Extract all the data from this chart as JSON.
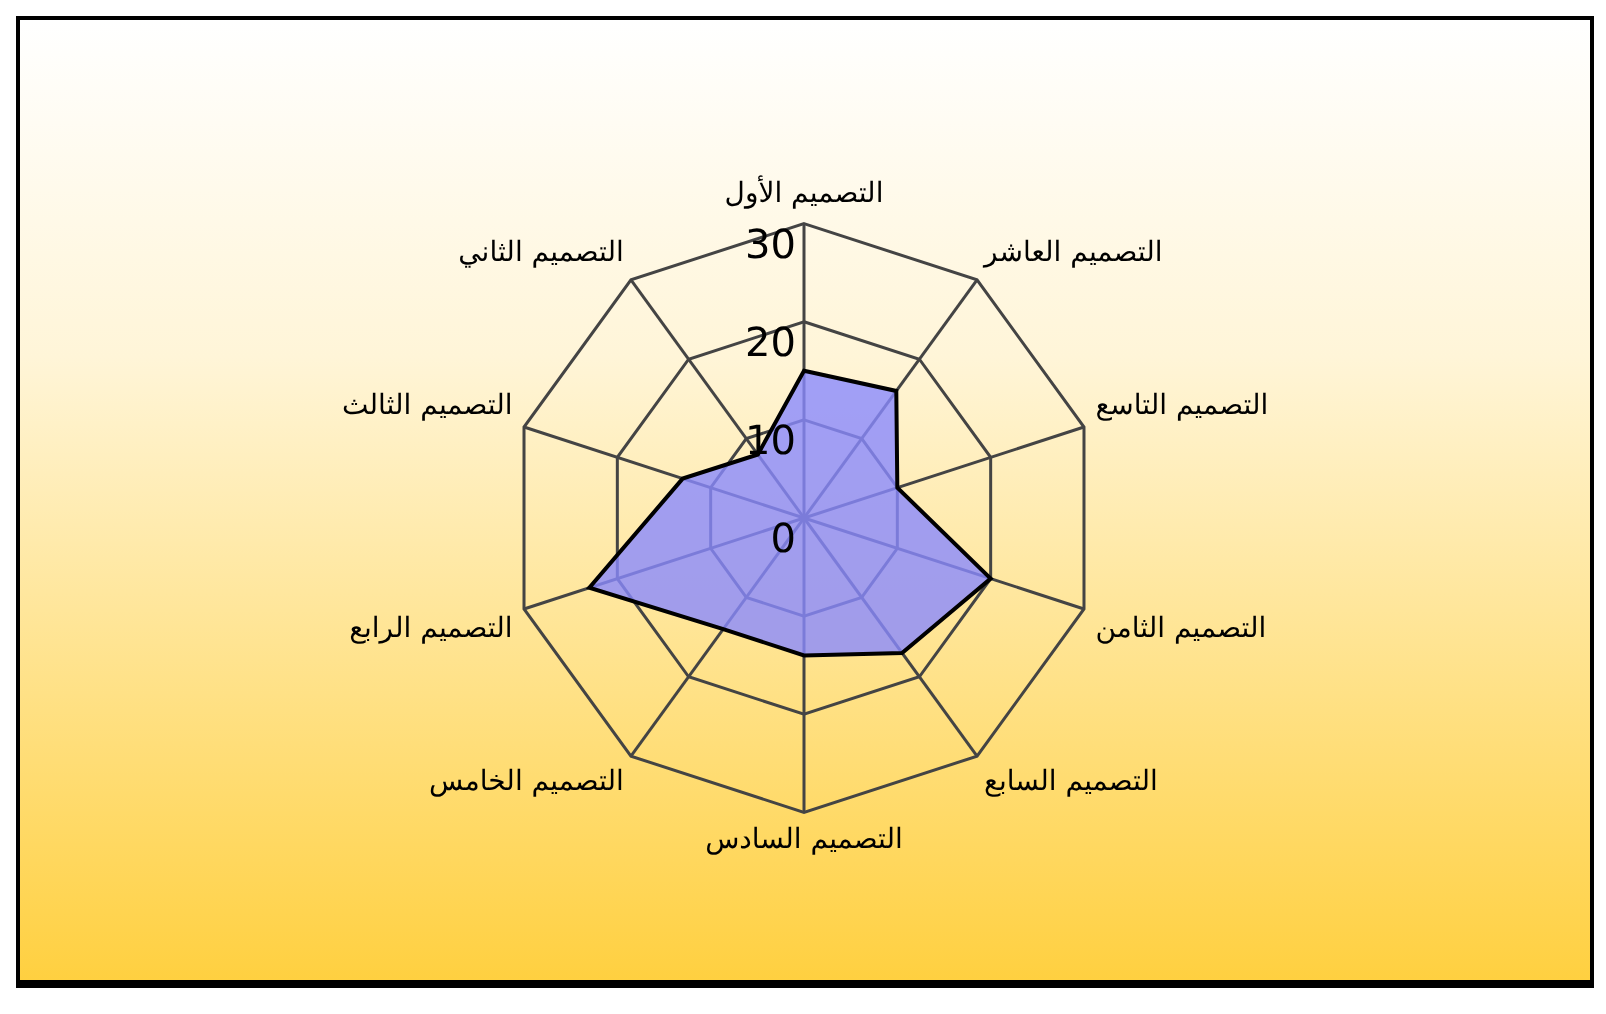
{
  "chart_data": {
    "type": "radar",
    "categories": [
      "التصميم الأول",
      "التصميم العاشر",
      "التصميم التاسع",
      "التصميم الثامن",
      "التصميم السابع",
      "التصميم السادس",
      "التصميم الخامس",
      "التصميم الرابع",
      "التصميم الثالث",
      "التصميم الثاني"
    ],
    "series": [
      {
        "color": "#8a8aff",
        "values": [
          15,
          16,
          10,
          20,
          17,
          14,
          14,
          23,
          13,
          8
        ]
      }
    ],
    "ylim": [
      0,
      30
    ],
    "yticks": [
      0,
      10,
      20,
      30
    ],
    "grid": true,
    "legend": false,
    "marker": "none"
  }
}
